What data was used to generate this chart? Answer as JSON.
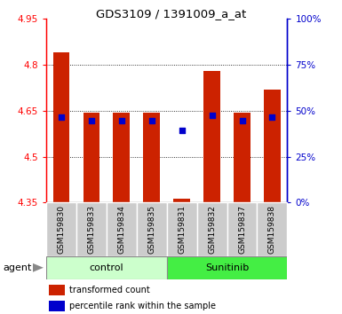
{
  "title": "GDS3109 / 1391009_a_at",
  "samples": [
    "GSM159830",
    "GSM159833",
    "GSM159834",
    "GSM159835",
    "GSM159831",
    "GSM159832",
    "GSM159837",
    "GSM159838"
  ],
  "red_values": [
    4.84,
    4.645,
    4.645,
    4.645,
    4.362,
    4.78,
    4.645,
    4.72
  ],
  "blue_values": [
    4.63,
    4.617,
    4.617,
    4.617,
    4.585,
    4.635,
    4.617,
    4.63
  ],
  "y_min": 4.35,
  "y_max": 4.95,
  "y_ticks": [
    4.35,
    4.5,
    4.65,
    4.8,
    4.95
  ],
  "y2_ticks": [
    0,
    25,
    50,
    75,
    100
  ],
  "control_label": "control",
  "sunitinib_label": "Sunitinib",
  "agent_label": "agent",
  "legend_red": "transformed count",
  "legend_blue": "percentile rank within the sample",
  "bar_color": "#cc2200",
  "blue_color": "#0000cc",
  "control_bg": "#ccffcc",
  "sunitinib_bg": "#44ee44",
  "sample_bg": "#cccccc",
  "plot_bg": "#ffffff",
  "bar_width": 0.55,
  "n_control": 4,
  "n_sunitinib": 4
}
